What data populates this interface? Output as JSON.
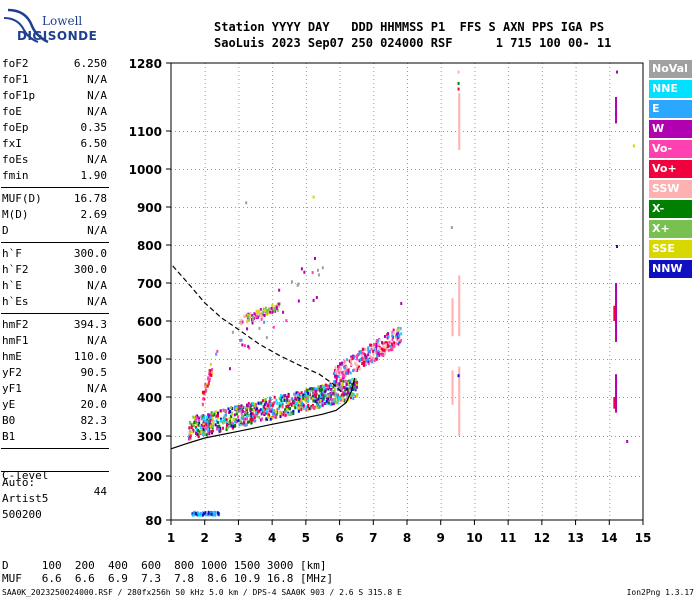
{
  "logo": {
    "line1": "Lowell",
    "line2": "DIGISONDE"
  },
  "header": {
    "line1": "Station YYYY DAY   DDD HHMMSS P1  FFS S AXN PPS IGA PS",
    "line2": "SaoLuis 2023 Sep07 250 024000 RSF      1 715 100 00- 11"
  },
  "params_group1": [
    {
      "name": "foF2",
      "value": "6.250"
    },
    {
      "name": "foF1",
      "value": "N/A"
    },
    {
      "name": "foF1p",
      "value": "N/A"
    },
    {
      "name": "foE",
      "value": "N/A"
    },
    {
      "name": "foEp",
      "value": "0.35"
    },
    {
      "name": "fxI",
      "value": "6.50"
    },
    {
      "name": "foEs",
      "value": "N/A"
    },
    {
      "name": "fmin",
      "value": "1.90"
    }
  ],
  "params_group2": [
    {
      "name": "MUF(D)",
      "value": "16.78"
    },
    {
      "name": "M(D)",
      "value": "2.69"
    },
    {
      "name": "D",
      "value": "N/A"
    }
  ],
  "params_group3": [
    {
      "name": "h`F",
      "value": "300.0"
    },
    {
      "name": "h`F2",
      "value": "300.0"
    },
    {
      "name": "h`E",
      "value": "N/A"
    },
    {
      "name": "h`Es",
      "value": "N/A"
    }
  ],
  "params_group4": [
    {
      "name": "hmF2",
      "value": "394.3"
    },
    {
      "name": "hmF1",
      "value": "N/A"
    },
    {
      "name": "hmE",
      "value": "110.0"
    },
    {
      "name": "yF2",
      "value": "90.5"
    },
    {
      "name": "yF1",
      "value": "N/A"
    },
    {
      "name": "yE",
      "value": "20.0"
    },
    {
      "name": "B0",
      "value": "82.3"
    },
    {
      "name": "B1",
      "value": "3.15"
    }
  ],
  "clevel": {
    "name": "C-level",
    "value": "44"
  },
  "auto": {
    "line1": "Auto:",
    "line2": "Artist5",
    "line3": "500200"
  },
  "legend": [
    {
      "label": "NoVal",
      "color": "#a0a0a0"
    },
    {
      "label": "NNE",
      "color": "#00e0ff"
    },
    {
      "label": "E",
      "color": "#2aa8ff"
    },
    {
      "label": "W",
      "color": "#b000b0"
    },
    {
      "label": "Vo-",
      "color": "#ff40b0"
    },
    {
      "label": "Vo+",
      "color": "#f0003c"
    },
    {
      "label": "SSW",
      "color": "#ffb0b0"
    },
    {
      "label": "X-",
      "color": "#008000"
    },
    {
      "label": "X+",
      "color": "#78c050"
    },
    {
      "label": "SSE",
      "color": "#d8d800"
    },
    {
      "label": "NNW",
      "color": "#1010c0"
    }
  ],
  "bottom": {
    "d_line": "D     100  200  400  600  800 1000 1500 3000 [km]",
    "muf_line": "MUF   6.6  6.6  6.9  7.3  7.8  8.6 10.9 16.8 [MHz]",
    "footer": "SAA0K_2023250024000.RSF / 280fx256h 50 kHz 5.0 km / DPS-4 SAA0K 903 / 2.6 S 315.8 E",
    "version": "Ion2Png 1.3.17"
  },
  "chart_data": {
    "type": "scatter",
    "xlim": [
      1,
      15
    ],
    "ylim": [
      80,
      1280
    ],
    "x_ticks": [
      1,
      2,
      3,
      4,
      5,
      6,
      7,
      8,
      9,
      10,
      11,
      12,
      13,
      14,
      15
    ],
    "y_ticks": [
      80,
      200,
      300,
      400,
      500,
      600,
      700,
      800,
      900,
      1000,
      1100,
      1280
    ],
    "y_axis_scale": "virtual-height ionogram axis",
    "grid": true,
    "series": [
      {
        "kind": "line",
        "style": "solid",
        "color": "#000000",
        "points": [
          [
            1.0,
            268
          ],
          [
            1.5,
            282
          ],
          [
            2.0,
            295
          ],
          [
            3.0,
            312
          ],
          [
            4.0,
            330
          ],
          [
            5.0,
            347
          ],
          [
            5.5,
            356
          ],
          [
            5.9,
            366
          ],
          [
            6.2,
            386
          ],
          [
            6.35,
            415
          ],
          [
            6.45,
            450
          ]
        ]
      },
      {
        "kind": "line",
        "style": "dashed",
        "color": "#000000",
        "points": [
          [
            1.05,
            745
          ],
          [
            1.5,
            700
          ],
          [
            2.0,
            648
          ],
          [
            2.5,
            608
          ],
          [
            3.0,
            578
          ],
          [
            3.6,
            540
          ],
          [
            4.2,
            510
          ],
          [
            4.8,
            484
          ],
          [
            5.4,
            460
          ],
          [
            5.8,
            435
          ],
          [
            6.1,
            410
          ]
        ]
      },
      {
        "kind": "echo_cluster",
        "name": "F-trace",
        "x_range": [
          1.5,
          6.5
        ],
        "y_base": [
          315,
          420
        ],
        "spread": 55,
        "count": 900,
        "colors": [
          "#b000b0",
          "#ff40b0",
          "#f0003c",
          "#2aa8ff",
          "#d8d800",
          "#00e0ff",
          "#1010c0",
          "#78c050",
          "#008000"
        ]
      },
      {
        "kind": "echo_cluster",
        "name": "upper-trace",
        "x_range": [
          5.8,
          7.8
        ],
        "y_base": [
          450,
          560
        ],
        "spread": 50,
        "count": 260,
        "colors": [
          "#f0003c",
          "#ff40b0",
          "#b000b0",
          "#2aa8ff",
          "#ffb0b0"
        ]
      },
      {
        "kind": "echo_cluster",
        "name": "second-hop",
        "x_range": [
          3.0,
          4.2
        ],
        "y_base": [
          600,
          640
        ],
        "spread": 20,
        "count": 80,
        "colors": [
          "#d8d800",
          "#ffb0b0",
          "#78c050",
          "#b000b0"
        ]
      },
      {
        "kind": "echo_cluster",
        "name": "sporadic-mid",
        "x_range": [
          1.9,
          2.2
        ],
        "y_base": [
          390,
          480
        ],
        "spread": 40,
        "count": 40,
        "colors": [
          "#ff40b0",
          "#f0003c",
          "#d8d800"
        ]
      },
      {
        "kind": "echo_cluster",
        "name": "low-E",
        "x_range": [
          1.6,
          2.4
        ],
        "y_base": [
          100,
          100
        ],
        "spread": 8,
        "count": 45,
        "colors": [
          "#00e0ff",
          "#2aa8ff",
          "#1010c0"
        ]
      },
      {
        "kind": "echo_cluster",
        "name": "scattered",
        "x_range": [
          2.3,
          5.5
        ],
        "y_base": [
          480,
          720
        ],
        "spread": 120,
        "count": 35,
        "colors": [
          "#b000b0",
          "#2aa8ff",
          "#ff40b0",
          "#a0a0a0"
        ]
      },
      {
        "kind": "vline",
        "color": "#ffb0b0",
        "x": 9.55,
        "segments": [
          [
            300,
            480
          ],
          [
            560,
            720
          ],
          [
            1050,
            1200
          ]
        ]
      },
      {
        "kind": "vline",
        "color": "#ffb0b0",
        "x": 9.35,
        "segments": [
          [
            560,
            660
          ],
          [
            380,
            470
          ]
        ]
      },
      {
        "kind": "vline",
        "color": "#b000b0",
        "x": 14.2,
        "segments": [
          [
            360,
            460
          ],
          [
            545,
            700
          ],
          [
            1120,
            1190
          ]
        ]
      },
      {
        "kind": "vline",
        "color": "#f0003c",
        "x": 14.15,
        "segments": [
          [
            600,
            640
          ],
          [
            370,
            400
          ]
        ]
      },
      {
        "kind": "dots",
        "points": [
          [
            9.5,
            1230,
            "#008000"
          ],
          [
            9.5,
            1215,
            "#f0003c"
          ],
          [
            9.5,
            1260,
            "#ffb0b0"
          ],
          [
            9.3,
            850,
            "#a0a0a0"
          ],
          [
            9.5,
            460,
            "#1010c0"
          ],
          [
            14.2,
            1260,
            "#b000b0"
          ],
          [
            14.2,
            800,
            "#1010c0"
          ],
          [
            14.5,
            290,
            "#b000b0"
          ],
          [
            14.7,
            1065,
            "#d8d800"
          ],
          [
            5.2,
            930,
            "#d8d800"
          ],
          [
            3.2,
            915,
            "#a0a0a0"
          ],
          [
            7.8,
            650,
            "#b000b0"
          ],
          [
            7.7,
            580,
            "#d8d800"
          ],
          [
            7.8,
            570,
            "#00e0ff"
          ]
        ]
      }
    ]
  }
}
